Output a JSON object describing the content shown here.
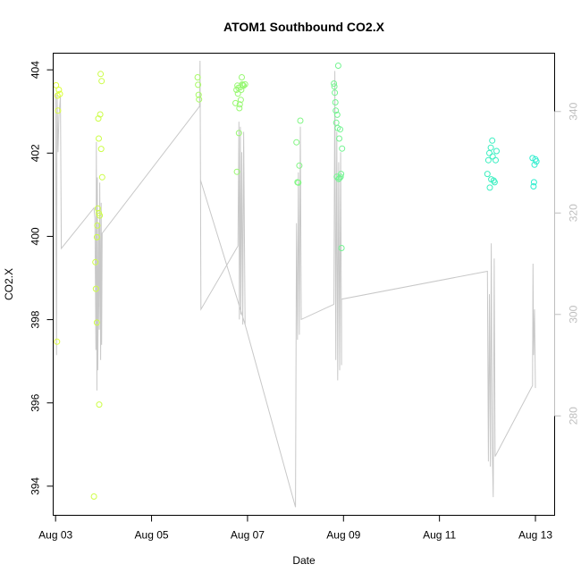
{
  "chart_data": {
    "type": "scatter",
    "title": "ATOM1 Southbound CO2.X",
    "xlabel": "Date",
    "ylabel": "CO2.X",
    "x_ticks": [
      "Aug 03",
      "Aug 05",
      "Aug 07",
      "Aug 09",
      "Aug 11",
      "Aug 13"
    ],
    "x_tick_days": [
      3,
      5,
      7,
      9,
      11,
      13
    ],
    "x_unit": "day of August",
    "xlim": [
      2.95,
      13.4
    ],
    "ylim": [
      393.3,
      404.4
    ],
    "y_ticks": [
      394,
      396,
      398,
      400,
      402,
      404
    ],
    "secondary_axis": {
      "ylim": [
        260.4,
        351.5
      ],
      "ticks": [
        280,
        300,
        320,
        340
      ],
      "color": "#bebebe"
    },
    "grid": false,
    "legend": "none",
    "series": [
      {
        "marker": "circle-open",
        "axis": "left",
        "color_gradient": [
          "#ddff3a",
          "#2bedce"
        ],
        "points": [
          {
            "x": 3.01,
            "y": 403.63
          },
          {
            "x": 3.04,
            "y": 403.38
          },
          {
            "x": 3.07,
            "y": 403.52
          },
          {
            "x": 3.05,
            "y": 403.02
          },
          {
            "x": 3.03,
            "y": 397.47
          },
          {
            "x": 3.09,
            "y": 403.42
          },
          {
            "x": 3.8,
            "y": 393.75
          },
          {
            "x": 3.83,
            "y": 399.38
          },
          {
            "x": 3.84,
            "y": 398.74
          },
          {
            "x": 3.86,
            "y": 397.93
          },
          {
            "x": 3.86,
            "y": 399.98
          },
          {
            "x": 3.87,
            "y": 400.26
          },
          {
            "x": 3.88,
            "y": 400.67
          },
          {
            "x": 3.89,
            "y": 402.83
          },
          {
            "x": 3.9,
            "y": 400.56
          },
          {
            "x": 3.9,
            "y": 402.35
          },
          {
            "x": 3.91,
            "y": 395.96
          },
          {
            "x": 3.92,
            "y": 400.5
          },
          {
            "x": 3.93,
            "y": 402.93
          },
          {
            "x": 3.94,
            "y": 403.9
          },
          {
            "x": 3.95,
            "y": 402.1
          },
          {
            "x": 3.96,
            "y": 403.73
          },
          {
            "x": 3.97,
            "y": 401.42
          },
          {
            "x": 5.96,
            "y": 403.82
          },
          {
            "x": 5.97,
            "y": 403.64
          },
          {
            "x": 5.98,
            "y": 403.4
          },
          {
            "x": 5.99,
            "y": 403.29
          },
          {
            "x": 6.75,
            "y": 403.2
          },
          {
            "x": 6.77,
            "y": 403.52
          },
          {
            "x": 6.78,
            "y": 401.55
          },
          {
            "x": 6.79,
            "y": 403.62
          },
          {
            "x": 6.8,
            "y": 403.43
          },
          {
            "x": 6.81,
            "y": 403.57
          },
          {
            "x": 6.82,
            "y": 402.48
          },
          {
            "x": 6.83,
            "y": 403.08
          },
          {
            "x": 6.84,
            "y": 403.17
          },
          {
            "x": 6.85,
            "y": 403.58
          },
          {
            "x": 6.86,
            "y": 403.28
          },
          {
            "x": 6.87,
            "y": 403.52
          },
          {
            "x": 6.88,
            "y": 403.82
          },
          {
            "x": 6.89,
            "y": 403.65
          },
          {
            "x": 6.9,
            "y": 403.63
          },
          {
            "x": 6.92,
            "y": 403.62
          },
          {
            "x": 6.95,
            "y": 403.65
          },
          {
            "x": 8.02,
            "y": 402.26
          },
          {
            "x": 8.04,
            "y": 401.3
          },
          {
            "x": 8.06,
            "y": 401.29
          },
          {
            "x": 8.08,
            "y": 401.7
          },
          {
            "x": 8.1,
            "y": 402.78
          },
          {
            "x": 8.8,
            "y": 403.67
          },
          {
            "x": 8.81,
            "y": 403.6
          },
          {
            "x": 8.82,
            "y": 403.45
          },
          {
            "x": 8.83,
            "y": 403.22
          },
          {
            "x": 8.84,
            "y": 403.02
          },
          {
            "x": 8.85,
            "y": 402.73
          },
          {
            "x": 8.86,
            "y": 401.43
          },
          {
            "x": 8.87,
            "y": 402.92
          },
          {
            "x": 8.88,
            "y": 402.6
          },
          {
            "x": 8.89,
            "y": 404.1
          },
          {
            "x": 8.9,
            "y": 401.38
          },
          {
            "x": 8.91,
            "y": 402.35
          },
          {
            "x": 8.92,
            "y": 401.4
          },
          {
            "x": 8.93,
            "y": 402.57
          },
          {
            "x": 8.94,
            "y": 401.43
          },
          {
            "x": 8.95,
            "y": 401.5
          },
          {
            "x": 8.96,
            "y": 399.72
          },
          {
            "x": 8.97,
            "y": 402.11
          },
          {
            "x": 12.0,
            "y": 401.5
          },
          {
            "x": 12.02,
            "y": 401.83
          },
          {
            "x": 12.04,
            "y": 402.0
          },
          {
            "x": 12.05,
            "y": 401.17
          },
          {
            "x": 12.07,
            "y": 402.13
          },
          {
            "x": 12.08,
            "y": 401.37
          },
          {
            "x": 12.1,
            "y": 402.3
          },
          {
            "x": 12.11,
            "y": 401.92
          },
          {
            "x": 12.13,
            "y": 401.34
          },
          {
            "x": 12.15,
            "y": 401.3
          },
          {
            "x": 12.17,
            "y": 401.83
          },
          {
            "x": 12.19,
            "y": 402.05
          },
          {
            "x": 12.94,
            "y": 401.88
          },
          {
            "x": 12.96,
            "y": 401.2
          },
          {
            "x": 12.97,
            "y": 401.3
          },
          {
            "x": 12.98,
            "y": 401.72
          },
          {
            "x": 13.0,
            "y": 401.85
          },
          {
            "x": 13.02,
            "y": 401.8
          }
        ]
      },
      {
        "type": "line",
        "axis": "right",
        "color": "#c8c8c8",
        "points": [
          {
            "x": 3.0,
            "y": 343.5
          },
          {
            "x": 3.02,
            "y": 292.0
          },
          {
            "x": 3.03,
            "y": 344.0
          },
          {
            "x": 3.05,
            "y": 332.0
          },
          {
            "x": 3.07,
            "y": 339.0
          },
          {
            "x": 3.1,
            "y": 343.0
          },
          {
            "x": 3.12,
            "y": 313.0
          },
          {
            "x": 3.8,
            "y": 321.0
          },
          {
            "x": 3.82,
            "y": 319.0
          },
          {
            "x": 3.84,
            "y": 293.0
          },
          {
            "x": 3.85,
            "y": 334.0
          },
          {
            "x": 3.86,
            "y": 285.0
          },
          {
            "x": 3.87,
            "y": 327.0
          },
          {
            "x": 3.88,
            "y": 289.0
          },
          {
            "x": 3.9,
            "y": 318.0
          },
          {
            "x": 3.91,
            "y": 297.0
          },
          {
            "x": 3.92,
            "y": 326.0
          },
          {
            "x": 3.94,
            "y": 291.0
          },
          {
            "x": 3.95,
            "y": 322.0
          },
          {
            "x": 3.96,
            "y": 294.0
          },
          {
            "x": 3.97,
            "y": 316.0
          },
          {
            "x": 6.0,
            "y": 341.0
          },
          {
            "x": 6.01,
            "y": 350.0
          },
          {
            "x": 6.02,
            "y": 327.0
          },
          {
            "x": 6.03,
            "y": 301.0
          },
          {
            "x": 6.8,
            "y": 313.5
          },
          {
            "x": 6.82,
            "y": 338.0
          },
          {
            "x": 6.83,
            "y": 299.0
          },
          {
            "x": 6.85,
            "y": 337.0
          },
          {
            "x": 6.86,
            "y": 300.0
          },
          {
            "x": 6.88,
            "y": 332.0
          },
          {
            "x": 6.9,
            "y": 298.0
          },
          {
            "x": 6.92,
            "y": 336.0
          },
          {
            "x": 6.95,
            "y": 298.0
          },
          {
            "x": 6.02,
            "y": 326.5
          },
          {
            "x": 6.95,
            "y": 298.0
          },
          {
            "x": 8.0,
            "y": 262.0
          },
          {
            "x": 8.02,
            "y": 318.0
          },
          {
            "x": 8.04,
            "y": 295.0
          },
          {
            "x": 8.06,
            "y": 328.0
          },
          {
            "x": 8.08,
            "y": 296.0
          },
          {
            "x": 8.1,
            "y": 337.0
          },
          {
            "x": 8.12,
            "y": 299.0
          },
          {
            "x": 8.8,
            "y": 302.0
          },
          {
            "x": 8.82,
            "y": 348.0
          },
          {
            "x": 8.84,
            "y": 291.0
          },
          {
            "x": 8.86,
            "y": 336.0
          },
          {
            "x": 8.88,
            "y": 287.0
          },
          {
            "x": 8.9,
            "y": 330.0
          },
          {
            "x": 8.92,
            "y": 289.0
          },
          {
            "x": 8.94,
            "y": 332.0
          },
          {
            "x": 8.96,
            "y": 290.0
          },
          {
            "x": 8.96,
            "y": 303.0
          },
          {
            "x": 12.0,
            "y": 308.5
          },
          {
            "x": 12.02,
            "y": 271.0
          },
          {
            "x": 12.04,
            "y": 304.0
          },
          {
            "x": 12.06,
            "y": 270.0
          },
          {
            "x": 12.08,
            "y": 314.0
          },
          {
            "x": 12.1,
            "y": 274.0
          },
          {
            "x": 12.12,
            "y": 264.0
          },
          {
            "x": 12.14,
            "y": 311.0
          },
          {
            "x": 12.16,
            "y": 272.0
          },
          {
            "x": 12.94,
            "y": 286.0
          },
          {
            "x": 12.95,
            "y": 310.0
          },
          {
            "x": 12.96,
            "y": 292.0
          },
          {
            "x": 12.98,
            "y": 301.0
          },
          {
            "x": 13.0,
            "y": 285.5
          }
        ]
      }
    ]
  }
}
